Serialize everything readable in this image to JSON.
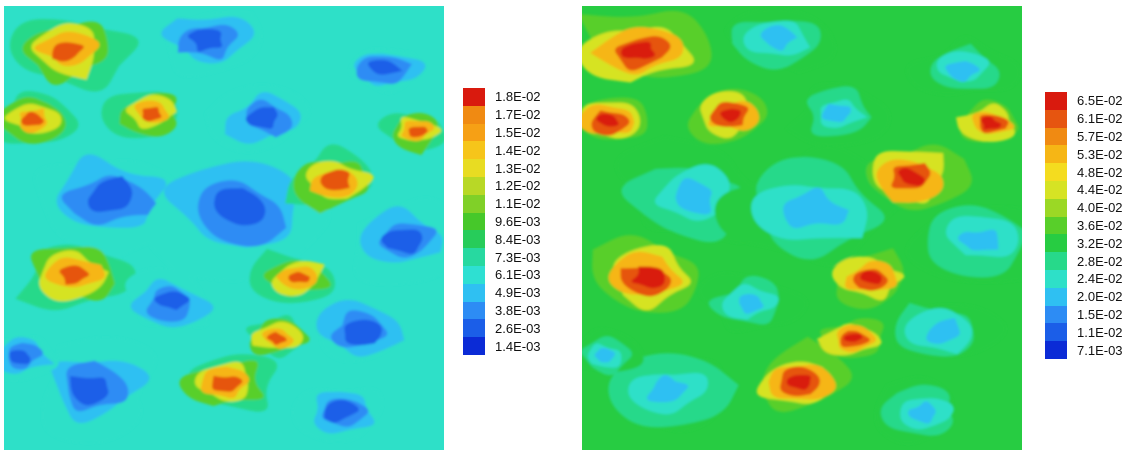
{
  "palette": [
    "#0b2bd6",
    "#1b5ee8",
    "#2d8cf4",
    "#2fc0f2",
    "#2ee0c8",
    "#27d98a",
    "#27cc42",
    "#58cf2a",
    "#9bd825",
    "#d6e324",
    "#f4dc1f",
    "#f6b615",
    "#f08a12",
    "#e65510",
    "#d91a0e"
  ],
  "panels": [
    {
      "id": "left",
      "legend": [
        "1.8E-02",
        "1.7E-02",
        "1.5E-02",
        "1.4E-02",
        "1.3E-02",
        "1.2E-02",
        "1.1E-02",
        "9.6E-03",
        "8.4E-03",
        "7.3E-03",
        "6.1E-03",
        "4.9E-03",
        "3.8E-03",
        "2.6E-03",
        "1.4E-03"
      ],
      "legend_colors": [
        "#d91a0e",
        "#f08a12",
        "#f6a015",
        "#f6c51a",
        "#e8dc22",
        "#b8d826",
        "#80d028",
        "#46c82a",
        "#27cc5a",
        "#27d9a0",
        "#2ee0d2",
        "#2fc0f2",
        "#2d8cf4",
        "#1b5ee8",
        "#0b2bd6"
      ]
    },
    {
      "id": "right",
      "legend": [
        "6.5E-02",
        "6.1E-02",
        "5.7E-02",
        "5.3E-02",
        "4.8E-02",
        "4.4E-02",
        "4.0E-02",
        "3.6E-02",
        "3.2E-02",
        "2.8E-02",
        "2.4E-02",
        "2.0E-02",
        "1.5E-02",
        "1.1E-02",
        "7.1E-03"
      ],
      "legend_colors": [
        "#d91a0e",
        "#e65510",
        "#f08a12",
        "#f6b615",
        "#f4dc1f",
        "#d6e324",
        "#9bd825",
        "#58cf2a",
        "#27cc42",
        "#27d98a",
        "#2ee0c8",
        "#2fc0f2",
        "#2d8cf4",
        "#1b5ee8",
        "#0b2bd6"
      ]
    }
  ]
}
